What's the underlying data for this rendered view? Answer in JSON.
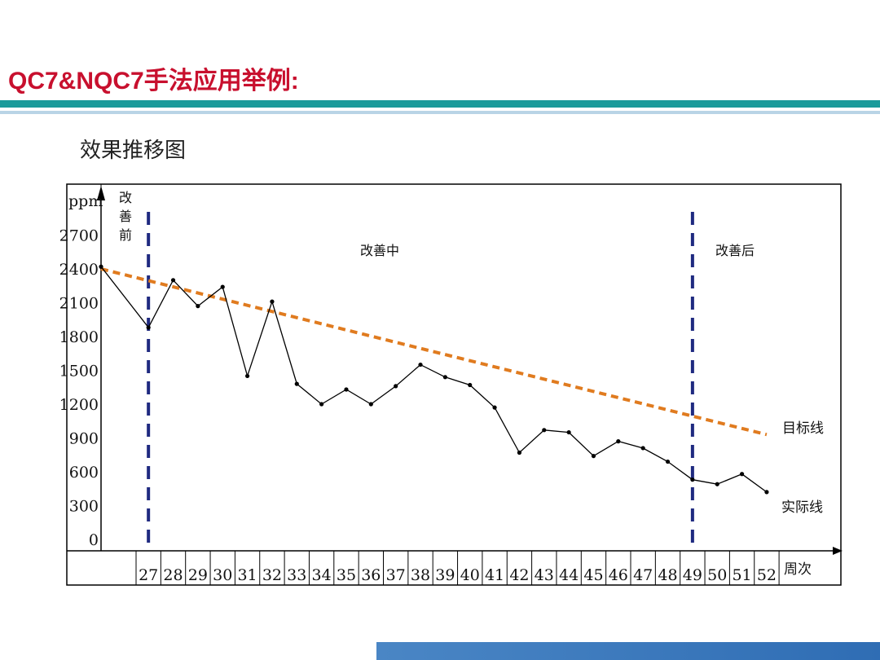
{
  "slide": {
    "title": "QC7&NQC7手法应用举例:"
  },
  "chart_data": {
    "type": "line",
    "title": "效果推移图",
    "ylabel": "ppm",
    "xlabel": "周次",
    "y_ticks": [
      0,
      300,
      600,
      900,
      1200,
      1500,
      1800,
      2100,
      2400,
      2700
    ],
    "ylim": [
      0,
      3000
    ],
    "categories": [
      "27",
      "28",
      "29",
      "30",
      "31",
      "32",
      "33",
      "34",
      "35",
      "36",
      "37",
      "38",
      "39",
      "40",
      "41",
      "42",
      "43",
      "44",
      "45",
      "46",
      "47",
      "48",
      "49",
      "50",
      "51",
      "52"
    ],
    "series": [
      {
        "name": "实际线",
        "color": "#000000",
        "style": "solid-with-markers",
        "points": [
          {
            "x": 26,
            "y": 2420
          },
          {
            "x": 27,
            "y": 1880
          },
          {
            "x": 28,
            "y": 2300
          },
          {
            "x": 29,
            "y": 2070
          },
          {
            "x": 30,
            "y": 2240
          },
          {
            "x": 31,
            "y": 1450
          },
          {
            "x": 32,
            "y": 2110
          },
          {
            "x": 33,
            "y": 1380
          },
          {
            "x": 34,
            "y": 1200
          },
          {
            "x": 35,
            "y": 1330
          },
          {
            "x": 36,
            "y": 1200
          },
          {
            "x": 37,
            "y": 1360
          },
          {
            "x": 38,
            "y": 1550
          },
          {
            "x": 39,
            "y": 1440
          },
          {
            "x": 40,
            "y": 1370
          },
          {
            "x": 41,
            "y": 1170
          },
          {
            "x": 42,
            "y": 770
          },
          {
            "x": 43,
            "y": 970
          },
          {
            "x": 44,
            "y": 950
          },
          {
            "x": 45,
            "y": 740
          },
          {
            "x": 46,
            "y": 870
          },
          {
            "x": 47,
            "y": 810
          },
          {
            "x": 48,
            "y": 690
          },
          {
            "x": 49,
            "y": 530
          },
          {
            "x": 50,
            "y": 490
          },
          {
            "x": 51,
            "y": 580
          },
          {
            "x": 52,
            "y": 420
          }
        ]
      },
      {
        "name": "目标线",
        "color": "#e07b1f",
        "style": "dashed",
        "points": [
          {
            "x": 26,
            "y": 2400
          },
          {
            "x": 52,
            "y": 930
          }
        ]
      }
    ],
    "phase_dividers": [
      27,
      49
    ],
    "phase_labels": {
      "before": "改善前",
      "during": "改善中",
      "after": "改善后"
    },
    "divider_color": "#1f2a80"
  }
}
